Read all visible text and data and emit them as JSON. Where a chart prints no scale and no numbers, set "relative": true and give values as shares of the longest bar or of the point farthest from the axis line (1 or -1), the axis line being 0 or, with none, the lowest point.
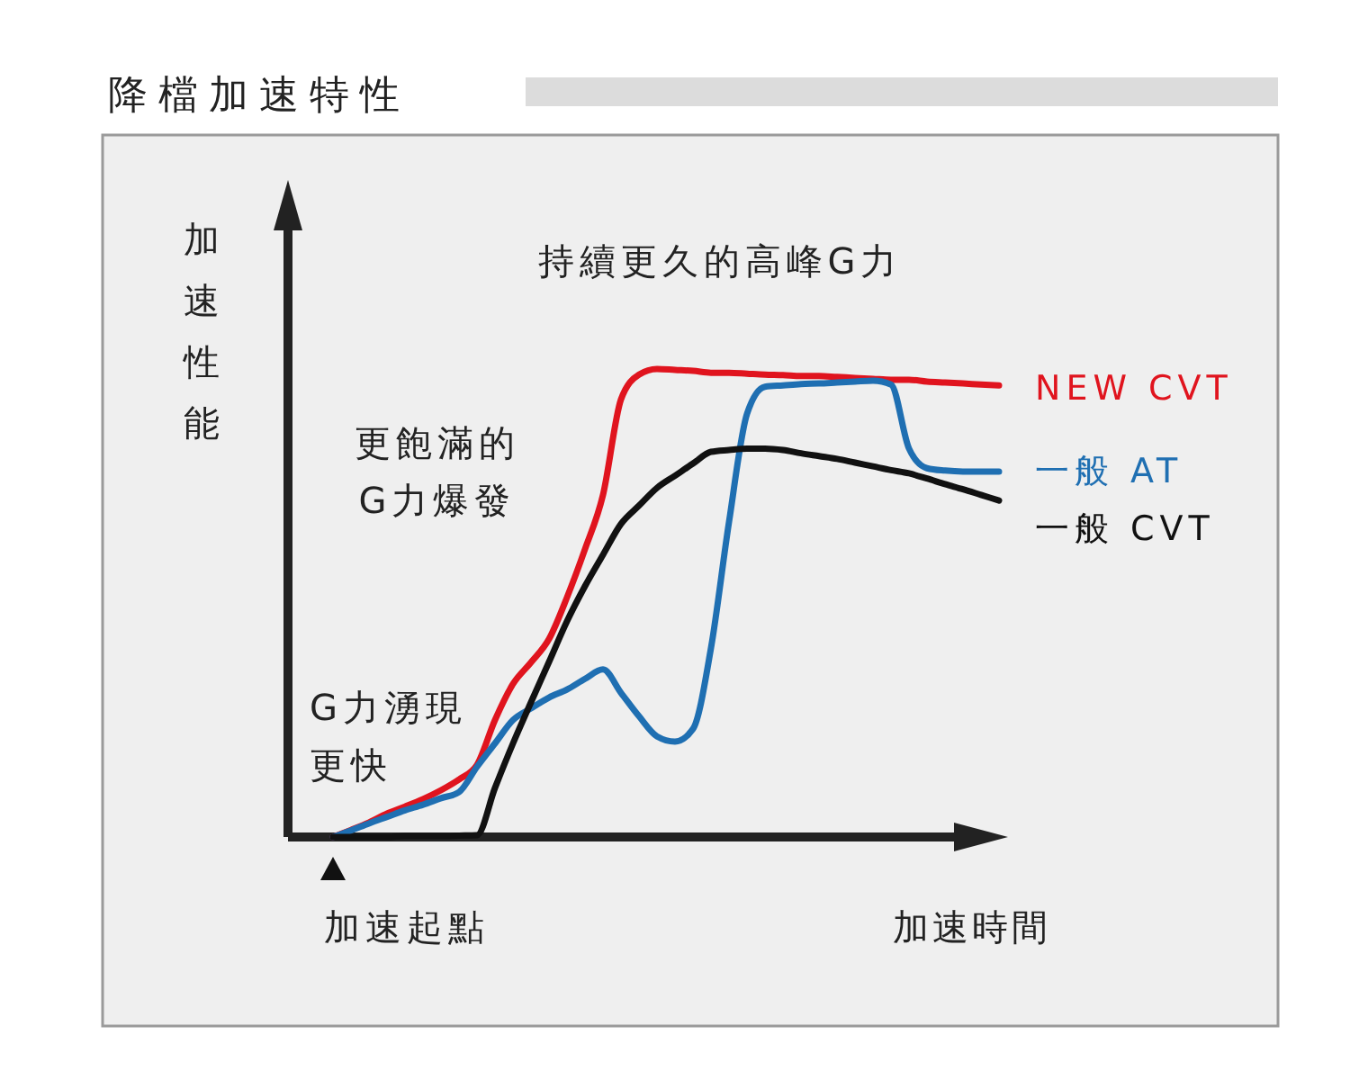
{
  "chart_data": {
    "type": "line",
    "title": "降檔加速特性",
    "ylabel": "加速性能",
    "xlabel": "加速時間",
    "relative": true,
    "legend": false,
    "marker": "none",
    "line_style": "solid",
    "annotations": [
      "持續更久的高峰G力",
      "更飽滿的G力爆發",
      "G力湧現更快",
      "加速起點"
    ],
    "categories": [
      null,
      null,
      null,
      null,
      null,
      null,
      null,
      null,
      null,
      null,
      null,
      null,
      null,
      null,
      null,
      null,
      null,
      null,
      null,
      null,
      null,
      null,
      null,
      null,
      null,
      null,
      null,
      null,
      null,
      null,
      null,
      null,
      null,
      null,
      null,
      null,
      null,
      null
    ],
    "series": [
      {
        "name": "NEW CVT",
        "color": "#e0141e",
        "values": [
          0,
          0.015,
          0.031,
          0.05,
          0.065,
          0.081,
          0.1,
          0.123,
          0.154,
          0.25,
          0.327,
          0.373,
          0.423,
          0.512,
          0.615,
          0.731,
          0.935,
          0.988,
          1,
          0.998,
          0.996,
          0.992,
          0.992,
          0.99,
          0.988,
          0.987,
          0.985,
          0.985,
          0.983,
          0.981,
          0.979,
          0.977,
          0.977,
          0.973,
          0.971,
          0.969,
          0.967,
          0.965
        ]
      },
      {
        "name": "一般 AT",
        "color": "#1f6fb2",
        "values": [
          0,
          0.014,
          0.029,
          0.043,
          0.057,
          0.069,
          0.083,
          0.096,
          0.15,
          0.2,
          0.25,
          0.275,
          0.298,
          0.315,
          0.338,
          0.358,
          0.308,
          0.258,
          0.215,
          0.204,
          0.231,
          0.404,
          0.673,
          0.904,
          0.962,
          0.965,
          0.968,
          0.969,
          0.971,
          0.973,
          0.975,
          0.967,
          0.83,
          0.788,
          0.783,
          0.781,
          0.781,
          0.781
        ]
      },
      {
        "name": "一般 CVT",
        "color": "#111111",
        "values": [
          0,
          0,
          0,
          0,
          0.002,
          0.002,
          0.002,
          0.003,
          0.004,
          0.105,
          0.2,
          0.288,
          0.374,
          0.461,
          0.536,
          0.603,
          0.669,
          0.708,
          0.746,
          0.772,
          0.798,
          0.823,
          0.827,
          0.83,
          0.83,
          0.827,
          0.82,
          0.814,
          0.808,
          0.8,
          0.792,
          0.784,
          0.777,
          0.766,
          0.754,
          0.743,
          0.731,
          0.719
        ]
      }
    ]
  }
}
